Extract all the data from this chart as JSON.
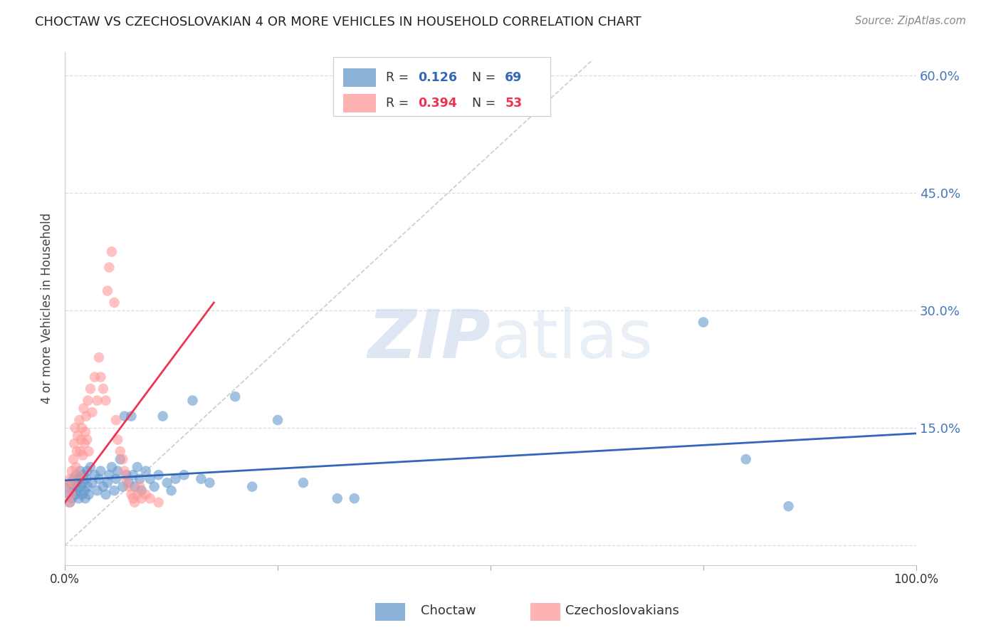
{
  "title": "CHOCTAW VS CZECHOSLOVAKIAN 4 OR MORE VEHICLES IN HOUSEHOLD CORRELATION CHART",
  "source": "Source: ZipAtlas.com",
  "ylabel": "4 or more Vehicles in Household",
  "xmin": 0.0,
  "xmax": 1.0,
  "ymin": -0.025,
  "ymax": 0.63,
  "yticks": [
    0.0,
    0.15,
    0.3,
    0.45,
    0.6
  ],
  "ytick_labels": [
    "",
    "15.0%",
    "30.0%",
    "45.0%",
    "60.0%"
  ],
  "xticks": [
    0.0,
    0.25,
    0.5,
    0.75,
    1.0
  ],
  "xtick_labels": [
    "0.0%",
    "",
    "",
    "",
    "100.0%"
  ],
  "legend_r_blue": "0.126",
  "legend_n_blue": "69",
  "legend_r_pink": "0.394",
  "legend_n_pink": "53",
  "color_blue": "#6699CC",
  "color_pink": "#FF9999",
  "color_blue_line": "#3366BB",
  "color_pink_line": "#EE3355",
  "color_diag": "#CCCCCC",
  "watermark_zip": "ZIP",
  "watermark_atlas": "atlas",
  "blue_scatter": [
    [
      0.003,
      0.075
    ],
    [
      0.005,
      0.065
    ],
    [
      0.006,
      0.055
    ],
    [
      0.007,
      0.08
    ],
    [
      0.008,
      0.06
    ],
    [
      0.009,
      0.07
    ],
    [
      0.01,
      0.085
    ],
    [
      0.011,
      0.075
    ],
    [
      0.012,
      0.065
    ],
    [
      0.013,
      0.09
    ],
    [
      0.014,
      0.08
    ],
    [
      0.015,
      0.07
    ],
    [
      0.016,
      0.06
    ],
    [
      0.017,
      0.085
    ],
    [
      0.018,
      0.095
    ],
    [
      0.019,
      0.075
    ],
    [
      0.02,
      0.065
    ],
    [
      0.021,
      0.08
    ],
    [
      0.022,
      0.09
    ],
    [
      0.023,
      0.07
    ],
    [
      0.024,
      0.06
    ],
    [
      0.025,
      0.085
    ],
    [
      0.026,
      0.095
    ],
    [
      0.027,
      0.075
    ],
    [
      0.028,
      0.065
    ],
    [
      0.03,
      0.1
    ],
    [
      0.032,
      0.08
    ],
    [
      0.035,
      0.09
    ],
    [
      0.038,
      0.07
    ],
    [
      0.04,
      0.085
    ],
    [
      0.042,
      0.095
    ],
    [
      0.045,
      0.075
    ],
    [
      0.048,
      0.065
    ],
    [
      0.05,
      0.08
    ],
    [
      0.052,
      0.09
    ],
    [
      0.055,
      0.1
    ],
    [
      0.058,
      0.07
    ],
    [
      0.06,
      0.085
    ],
    [
      0.062,
      0.095
    ],
    [
      0.065,
      0.11
    ],
    [
      0.068,
      0.075
    ],
    [
      0.07,
      0.165
    ],
    [
      0.072,
      0.09
    ],
    [
      0.075,
      0.08
    ],
    [
      0.078,
      0.165
    ],
    [
      0.08,
      0.09
    ],
    [
      0.082,
      0.075
    ],
    [
      0.085,
      0.1
    ],
    [
      0.088,
      0.085
    ],
    [
      0.09,
      0.07
    ],
    [
      0.095,
      0.095
    ],
    [
      0.1,
      0.085
    ],
    [
      0.105,
      0.075
    ],
    [
      0.11,
      0.09
    ],
    [
      0.115,
      0.165
    ],
    [
      0.12,
      0.08
    ],
    [
      0.125,
      0.07
    ],
    [
      0.13,
      0.085
    ],
    [
      0.14,
      0.09
    ],
    [
      0.15,
      0.185
    ],
    [
      0.16,
      0.085
    ],
    [
      0.17,
      0.08
    ],
    [
      0.2,
      0.19
    ],
    [
      0.22,
      0.075
    ],
    [
      0.25,
      0.16
    ],
    [
      0.28,
      0.08
    ],
    [
      0.32,
      0.06
    ],
    [
      0.34,
      0.06
    ],
    [
      0.75,
      0.285
    ],
    [
      0.8,
      0.11
    ],
    [
      0.85,
      0.05
    ]
  ],
  "pink_scatter": [
    [
      0.003,
      0.075
    ],
    [
      0.005,
      0.055
    ],
    [
      0.006,
      0.085
    ],
    [
      0.007,
      0.065
    ],
    [
      0.008,
      0.095
    ],
    [
      0.009,
      0.08
    ],
    [
      0.01,
      0.11
    ],
    [
      0.011,
      0.13
    ],
    [
      0.012,
      0.15
    ],
    [
      0.013,
      0.1
    ],
    [
      0.014,
      0.12
    ],
    [
      0.015,
      0.14
    ],
    [
      0.016,
      0.09
    ],
    [
      0.017,
      0.16
    ],
    [
      0.018,
      0.12
    ],
    [
      0.019,
      0.135
    ],
    [
      0.02,
      0.15
    ],
    [
      0.021,
      0.115
    ],
    [
      0.022,
      0.175
    ],
    [
      0.023,
      0.13
    ],
    [
      0.024,
      0.145
    ],
    [
      0.025,
      0.165
    ],
    [
      0.026,
      0.135
    ],
    [
      0.027,
      0.185
    ],
    [
      0.028,
      0.12
    ],
    [
      0.03,
      0.2
    ],
    [
      0.032,
      0.17
    ],
    [
      0.035,
      0.215
    ],
    [
      0.038,
      0.185
    ],
    [
      0.04,
      0.24
    ],
    [
      0.042,
      0.215
    ],
    [
      0.045,
      0.2
    ],
    [
      0.048,
      0.185
    ],
    [
      0.05,
      0.325
    ],
    [
      0.052,
      0.355
    ],
    [
      0.055,
      0.375
    ],
    [
      0.058,
      0.31
    ],
    [
      0.06,
      0.16
    ],
    [
      0.062,
      0.135
    ],
    [
      0.065,
      0.12
    ],
    [
      0.068,
      0.11
    ],
    [
      0.07,
      0.095
    ],
    [
      0.072,
      0.085
    ],
    [
      0.075,
      0.075
    ],
    [
      0.078,
      0.065
    ],
    [
      0.08,
      0.06
    ],
    [
      0.082,
      0.055
    ],
    [
      0.085,
      0.065
    ],
    [
      0.088,
      0.075
    ],
    [
      0.09,
      0.06
    ],
    [
      0.095,
      0.065
    ],
    [
      0.1,
      0.06
    ],
    [
      0.11,
      0.055
    ]
  ],
  "blue_line_x": [
    0.0,
    1.0
  ],
  "blue_line_y": [
    0.083,
    0.143
  ],
  "pink_line_x": [
    0.0,
    0.175
  ],
  "pink_line_y": [
    0.055,
    0.31
  ],
  "diag_line_x": [
    0.0,
    0.62
  ],
  "diag_line_y": [
    0.0,
    0.62
  ]
}
